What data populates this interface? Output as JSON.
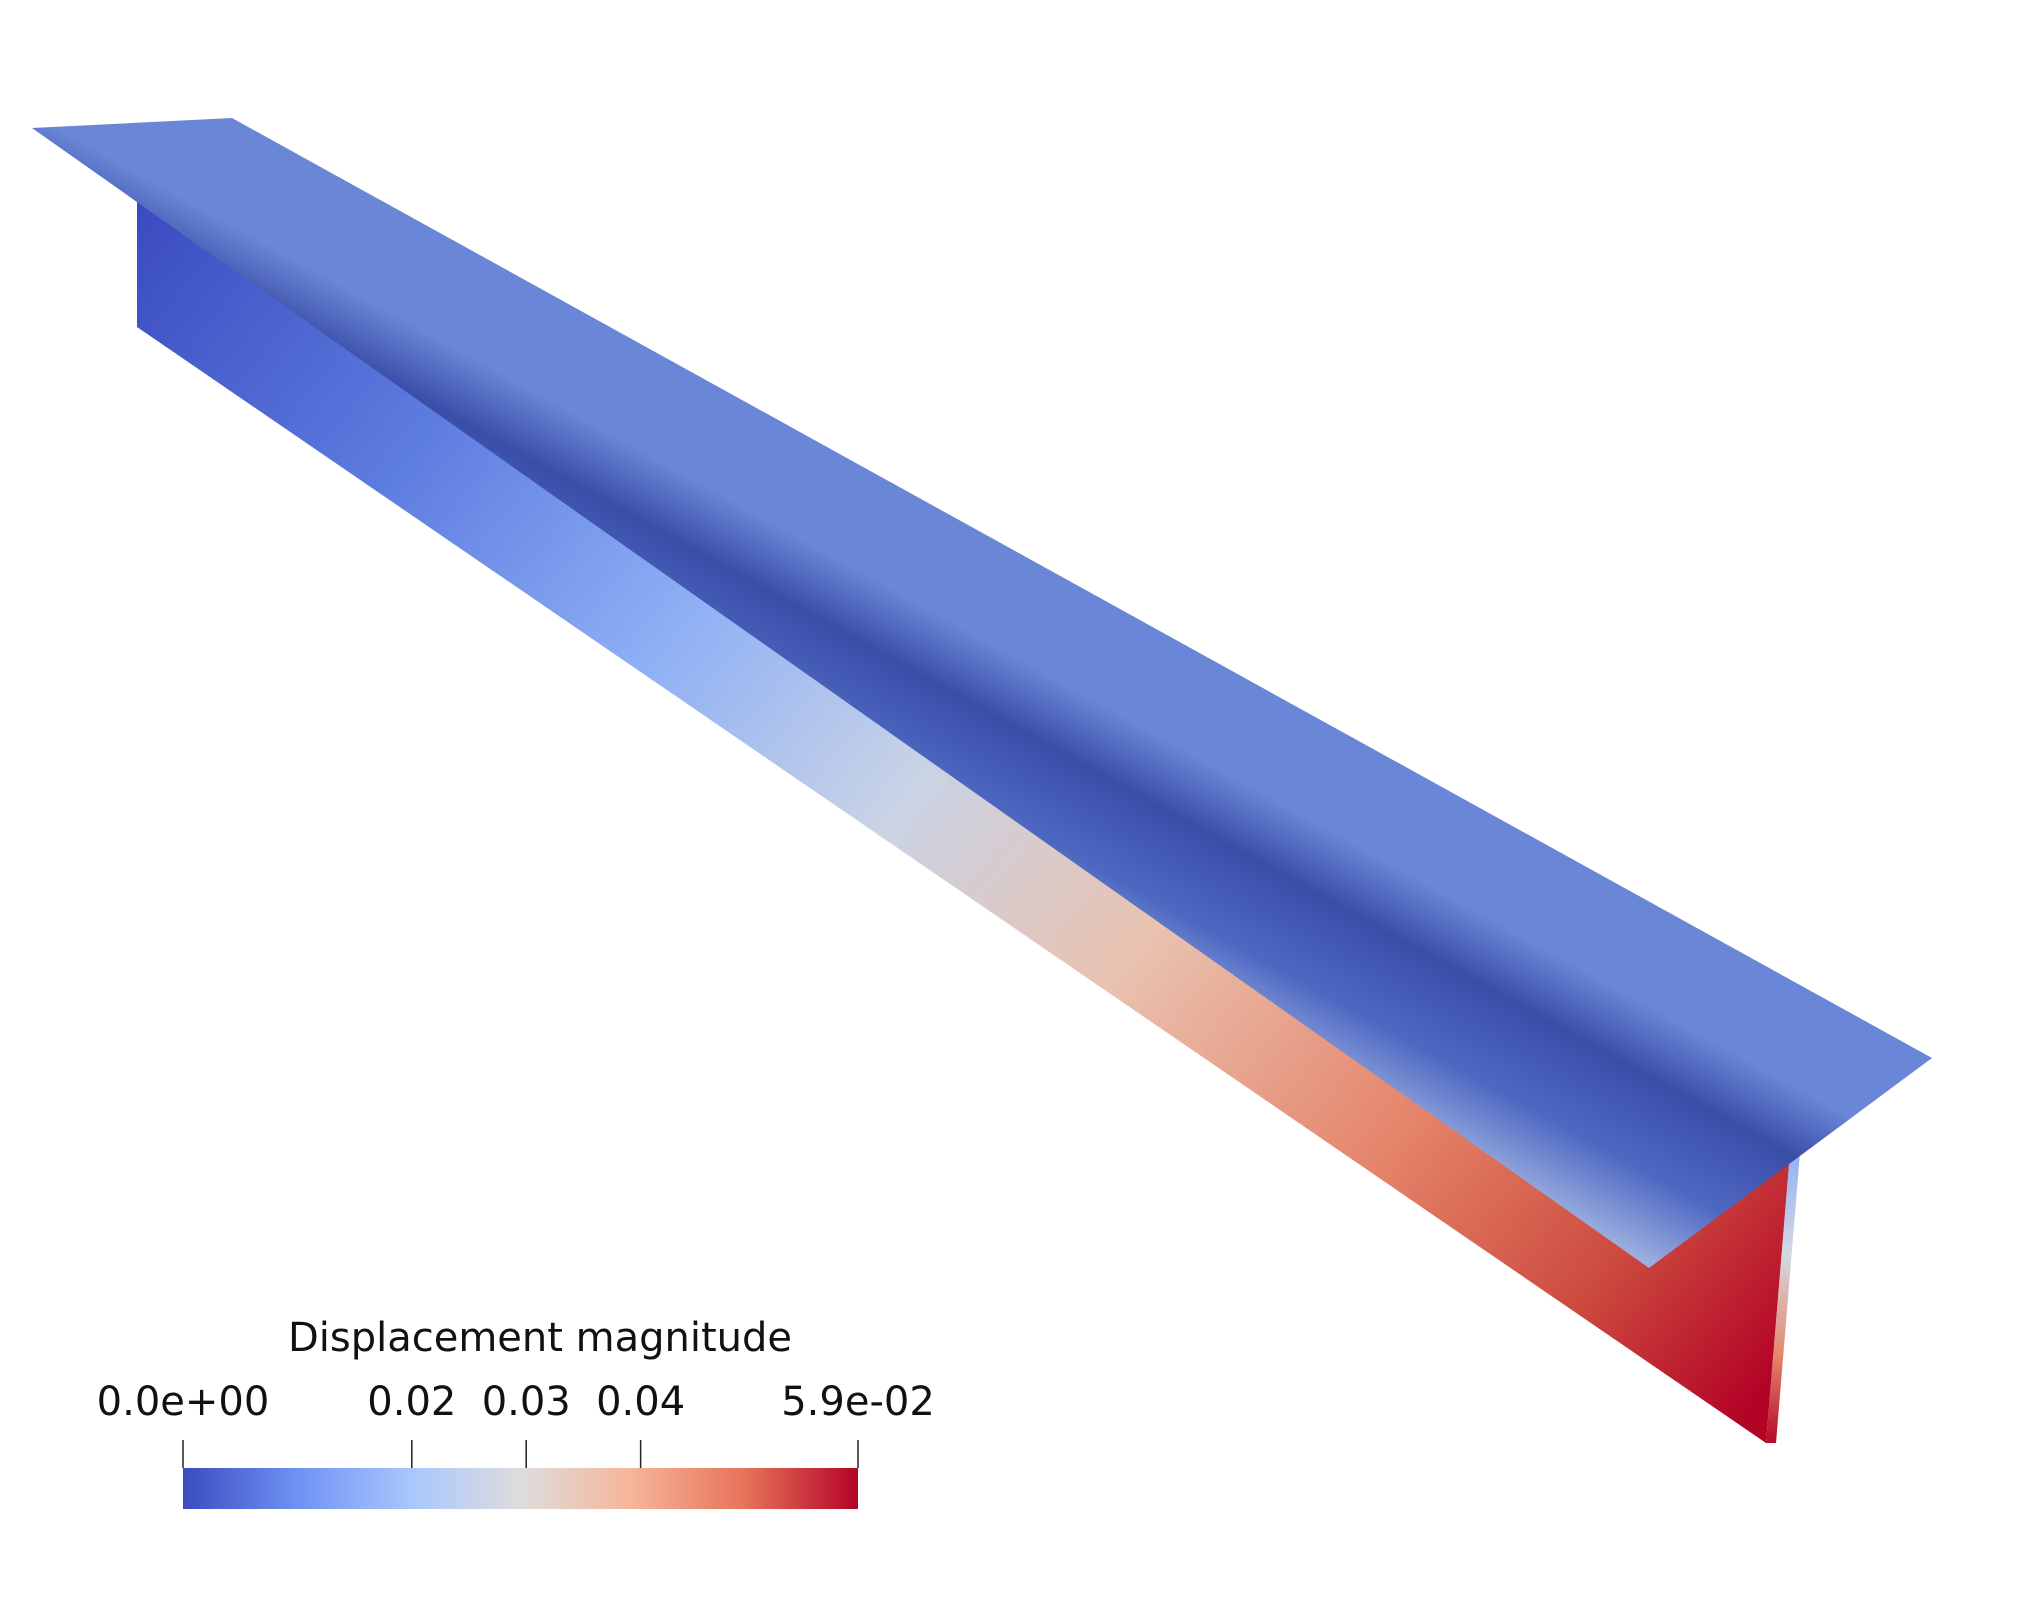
{
  "colormap": {
    "name": "Cool to Warm",
    "stops": [
      "#3b4cc0",
      "#6f92f3",
      "#aac7fd",
      "#dddddd",
      "#f6b79b",
      "#e7745b",
      "#b40426"
    ]
  },
  "legend": {
    "title": "Displacement magnitude",
    "ticks": [
      {
        "label": "0.0e+00",
        "value": 0.0
      },
      {
        "label": "0.02",
        "value": 0.02
      },
      {
        "label": "0.03",
        "value": 0.03
      },
      {
        "label": "0.04",
        "value": 0.04
      },
      {
        "label": "5.9e-02",
        "value": 0.059
      }
    ]
  },
  "scene": {
    "object": "t-beam",
    "parts": [
      "flange-top-surface",
      "web-front-face",
      "web-end-face"
    ]
  }
}
